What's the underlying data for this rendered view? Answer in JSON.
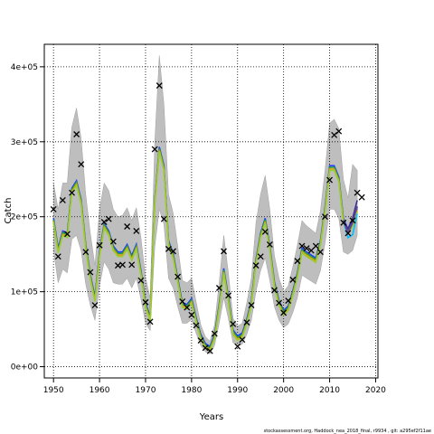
{
  "chart_data": {
    "type": "line",
    "title": "",
    "xlabel": "Years",
    "ylabel": "Catch",
    "xlim": [
      1948,
      2020.5
    ],
    "ylim": [
      -15000,
      430000
    ],
    "x_ticks": [
      1950,
      1960,
      1970,
      1980,
      1990,
      2000,
      2010,
      2020
    ],
    "x_tick_labels": [
      "1950",
      "1960",
      "1970",
      "1980",
      "1990",
      "2000",
      "2010",
      "2020"
    ],
    "y_ticks": [
      0,
      100000,
      200000,
      300000,
      400000
    ],
    "y_tick_labels": [
      "0e+00",
      "1e+05",
      "2e+05",
      "3e+05",
      "4e+05"
    ],
    "grid": true,
    "footer_text": "stockassessment.org, Haddock_nea_2018_final, r9934 , git: a295ef2f11ae",
    "band_color": "#bebebe",
    "line_colors": [
      "#1e3cff",
      "#2a9d3a",
      "#e69b00",
      "#9acd32"
    ],
    "late_line_colors": [
      "#00bfff",
      "#3c2f8f",
      "#6a3d9a"
    ],
    "observed": {
      "x": [
        1950,
        1951,
        1952,
        1953,
        1954,
        1955,
        1956,
        1957,
        1958,
        1959,
        1960,
        1961,
        1962,
        1963,
        1964,
        1965,
        1966,
        1967,
        1968,
        1969,
        1970,
        1971,
        1972,
        1973,
        1974,
        1975,
        1976,
        1977,
        1978,
        1979,
        1980,
        1981,
        1982,
        1983,
        1984,
        1985,
        1986,
        1987,
        1988,
        1989,
        1990,
        1991,
        1992,
        1993,
        1994,
        1995,
        1996,
        1997,
        1998,
        1999,
        2000,
        2001,
        2002,
        2003,
        2004,
        2005,
        2006,
        2007,
        2008,
        2009,
        2010,
        2011,
        2012,
        2013,
        2014,
        2015,
        2016,
        2017
      ],
      "y": [
        210000,
        147000,
        222000,
        177000,
        232000,
        310000,
        270000,
        153000,
        126000,
        82000,
        162000,
        193000,
        197000,
        167000,
        135000,
        136000,
        187000,
        136000,
        181000,
        115000,
        86000,
        60000,
        290000,
        375000,
        197000,
        157000,
        154000,
        120000,
        87000,
        79000,
        69000,
        55000,
        35000,
        25000,
        21000,
        44000,
        105000,
        154000,
        95000,
        57000,
        27000,
        36000,
        59000,
        82000,
        135000,
        147000,
        180000,
        163000,
        102000,
        85000,
        72000,
        88000,
        116000,
        141000,
        161000,
        158000,
        155000,
        161000,
        153000,
        200000,
        249000,
        309000,
        314000,
        192000,
        178000,
        195000,
        232000,
        226000
      ]
    },
    "fit": {
      "x": [
        1950,
        1951,
        1952,
        1953,
        1954,
        1955,
        1956,
        1957,
        1958,
        1959,
        1960,
        1961,
        1962,
        1963,
        1964,
        1965,
        1966,
        1967,
        1968,
        1969,
        1970,
        1971,
        1972,
        1973,
        1974,
        1975,
        1976,
        1977,
        1978,
        1979,
        1980,
        1981,
        1982,
        1983,
        1984,
        1985,
        1986,
        1987,
        1988,
        1989,
        1990,
        1991,
        1992,
        1993,
        1994,
        1995,
        1996,
        1997,
        1998,
        1999,
        2000,
        2001,
        2002,
        2003,
        2004,
        2005,
        2006,
        2007,
        2008,
        2009,
        2010,
        2011,
        2012,
        2013,
        2014,
        2015,
        2016
      ],
      "y": [
        195000,
        155000,
        178000,
        175000,
        235000,
        245000,
        220000,
        160000,
        120000,
        90000,
        150000,
        188000,
        178000,
        158000,
        150000,
        150000,
        160000,
        145000,
        160000,
        125000,
        82000,
        64000,
        220000,
        290000,
        265000,
        165000,
        148000,
        115000,
        82000,
        80000,
        88000,
        62000,
        40000,
        28000,
        24000,
        40000,
        80000,
        128000,
        90000,
        46000,
        38000,
        42000,
        60000,
        85000,
        140000,
        175000,
        195000,
        158000,
        110000,
        85000,
        72000,
        78000,
        98000,
        122000,
        155000,
        150000,
        146000,
        142000,
        165000,
        210000,
        265000,
        265000,
        250000,
        195000,
        180000,
        190000,
        210000
      ],
      "lower": [
        155000,
        112000,
        130000,
        125000,
        170000,
        175000,
        155000,
        110000,
        82000,
        62000,
        108000,
        140000,
        130000,
        112000,
        110000,
        110000,
        118000,
        105000,
        118000,
        90000,
        58000,
        48000,
        160000,
        210000,
        190000,
        118000,
        105000,
        80000,
        58000,
        58000,
        63000,
        44000,
        28000,
        20000,
        17000,
        28000,
        58000,
        92000,
        64000,
        32000,
        27000,
        30000,
        43000,
        62000,
        100000,
        128000,
        145000,
        115000,
        80000,
        62000,
        52000,
        57000,
        72000,
        92000,
        122000,
        118000,
        114000,
        110000,
        128000,
        165000,
        210000,
        210000,
        198000,
        153000,
        150000,
        155000,
        175000
      ],
      "upper": [
        245000,
        210000,
        245000,
        245000,
        320000,
        345000,
        305000,
        230000,
        178000,
        135000,
        210000,
        245000,
        235000,
        210000,
        200000,
        202000,
        212000,
        195000,
        212000,
        172000,
        118000,
        92000,
        300000,
        415000,
        350000,
        230000,
        205000,
        160000,
        115000,
        112000,
        118000,
        86000,
        56000,
        40000,
        34000,
        56000,
        112000,
        175000,
        125000,
        65000,
        54000,
        58000,
        85000,
        118000,
        192000,
        230000,
        255000,
        210000,
        148000,
        118000,
        100000,
        108000,
        133000,
        162000,
        195000,
        188000,
        183000,
        178000,
        208000,
        262000,
        325000,
        330000,
        318000,
        250000,
        225000,
        270000,
        262000
      ]
    }
  }
}
